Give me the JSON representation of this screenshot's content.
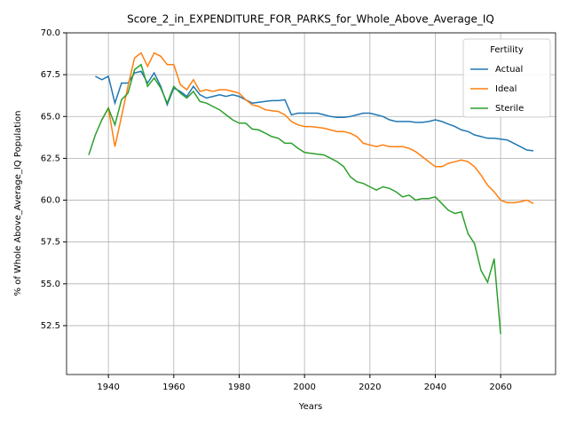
{
  "chart_data": {
    "type": "line",
    "title": "Score_2_in_EXPENDITURE_FOR_PARKS_for_Whole_Above_Average_IQ",
    "xlabel": "Years",
    "ylabel": "% of Whole Above_Average_IQ Population",
    "legend_title": "Fertility",
    "legend": "upper right",
    "grid": true,
    "x": [
      1934,
      1936,
      1938,
      1940,
      1942,
      1944,
      1946,
      1948,
      1950,
      1952,
      1954,
      1956,
      1958,
      1960,
      1962,
      1964,
      1966,
      1968,
      1970,
      1972,
      1974,
      1976,
      1978,
      1980,
      1982,
      1984,
      1986,
      1988,
      1990,
      1992,
      1994,
      1996,
      1998,
      2000,
      2002,
      2004,
      2006,
      2008,
      2010,
      2012,
      2014,
      2016,
      2018,
      2020,
      2022,
      2024,
      2026,
      2028,
      2030,
      2032,
      2034,
      2036,
      2038,
      2040,
      2042,
      2044,
      2046,
      2048,
      2050,
      2052,
      2054,
      2056,
      2058,
      2060,
      2062,
      2064,
      2066,
      2068,
      2070
    ],
    "series": [
      {
        "name": "Actual",
        "color": "#1f77b4",
        "values": [
          null,
          67.4,
          67.2,
          67.4,
          65.8,
          67.0,
          67.0,
          67.6,
          67.7,
          67.0,
          67.6,
          66.8,
          65.7,
          66.7,
          66.5,
          66.2,
          66.8,
          66.3,
          66.1,
          66.2,
          66.3,
          66.2,
          66.3,
          66.2,
          66.0,
          65.8,
          65.85,
          65.9,
          65.95,
          65.95,
          66.0,
          65.1,
          65.2,
          65.2,
          65.2,
          65.2,
          65.1,
          65.0,
          64.95,
          64.95,
          65.0,
          65.1,
          65.2,
          65.2,
          65.1,
          65.0,
          64.8,
          64.7,
          64.7,
          64.7,
          64.65,
          64.65,
          64.7,
          64.8,
          64.7,
          64.55,
          64.4,
          64.2,
          64.1,
          63.9,
          63.8,
          63.7,
          63.7,
          63.65,
          63.6,
          63.4,
          63.2,
          63.0,
          62.95
        ]
      },
      {
        "name": "Ideal",
        "color": "#ff7f0e",
        "values": [
          null,
          null,
          64.8,
          65.5,
          63.2,
          65.0,
          66.8,
          68.5,
          68.8,
          68.0,
          68.8,
          68.6,
          68.1,
          68.1,
          66.9,
          66.6,
          67.2,
          66.5,
          66.6,
          66.5,
          66.6,
          66.6,
          66.5,
          66.4,
          66.0,
          65.7,
          65.6,
          65.4,
          65.35,
          65.3,
          65.1,
          64.7,
          64.5,
          64.4,
          64.4,
          64.35,
          64.3,
          64.2,
          64.1,
          64.1,
          64.0,
          63.8,
          63.4,
          63.3,
          63.2,
          63.3,
          63.2,
          63.2,
          63.2,
          63.1,
          62.9,
          62.6,
          62.3,
          62.0,
          62.0,
          62.2,
          62.3,
          62.4,
          62.3,
          62.0,
          61.5,
          60.9,
          60.5,
          60.0,
          59.85,
          59.85,
          59.9,
          60.0,
          59.8
        ]
      },
      {
        "name": "Sterile",
        "color": "#2ca02c",
        "values": [
          62.7,
          63.9,
          64.8,
          65.5,
          64.5,
          66.0,
          66.4,
          67.8,
          68.1,
          66.8,
          67.3,
          66.7,
          65.8,
          66.8,
          66.4,
          66.1,
          66.5,
          65.9,
          65.8,
          65.6,
          65.4,
          65.1,
          64.8,
          64.6,
          64.6,
          64.25,
          64.2,
          64.0,
          63.8,
          63.7,
          63.4,
          63.4,
          63.1,
          62.85,
          62.8,
          62.75,
          62.7,
          62.5,
          62.3,
          62.0,
          61.4,
          61.1,
          61.0,
          60.8,
          60.6,
          60.8,
          60.7,
          60.5,
          60.2,
          60.3,
          60.0,
          60.1,
          60.1,
          60.2,
          59.8,
          59.4,
          59.2,
          59.3,
          58.0,
          57.4,
          55.8,
          55.1,
          56.5,
          52.0,
          null,
          null,
          null,
          null,
          null
        ]
      }
    ],
    "xlim": [
      1927.2,
      2076.8
    ],
    "xticks": [
      1940,
      1960,
      1980,
      2000,
      2020,
      2040,
      2060
    ],
    "ylim": [
      49.58,
      70.0
    ],
    "yticks": [
      52.5,
      {
        "value": 55.0,
        "label": "55.0"
      },
      57.5,
      {
        "value": 60.0,
        "label": "60.0"
      },
      62.5,
      {
        "value": 65.0,
        "label": "65.0"
      },
      67.5,
      {
        "value": 70.0,
        "label": "70.0"
      }
    ]
  }
}
